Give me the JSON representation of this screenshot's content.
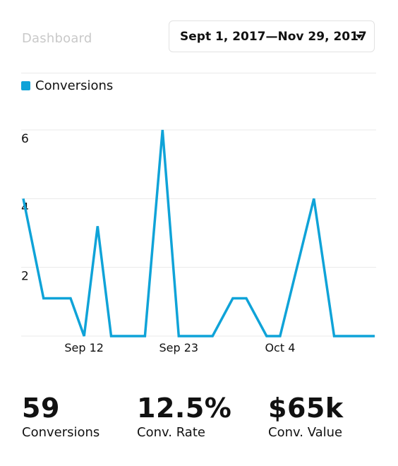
{
  "header": {
    "title": "Dashboard",
    "date_range": "Sept 1, 2017—Nov 29, 2017"
  },
  "colors": {
    "accent": "#0fa3d8",
    "grid": "#e9e9e9"
  },
  "icons": {
    "dropdown": "chevron-down-icon"
  },
  "chart_data": {
    "type": "line",
    "legend_position": "top-left",
    "grid": true,
    "series": [
      {
        "name": "Conversions",
        "x": [
          0,
          1.5,
          3.5,
          4.5,
          5.5,
          6.5,
          9,
          10.3,
          11.5,
          14,
          15.5,
          16.5,
          18,
          19,
          21.5,
          23,
          24.5,
          26
        ],
        "y": [
          4,
          1.1,
          1.1,
          0,
          3.2,
          0,
          0,
          6,
          0,
          0,
          1.1,
          1.1,
          0,
          0,
          4,
          0,
          0,
          0
        ]
      }
    ],
    "xlim": [
      0,
      26
    ],
    "ylim": [
      0,
      6
    ],
    "y_ticks": [
      2,
      4,
      6
    ],
    "x_ticks": [
      {
        "value": 4.5,
        "label": "Sep 12"
      },
      {
        "value": 11.5,
        "label": "Sep 23"
      },
      {
        "value": 19.0,
        "label": "Oct 4"
      }
    ],
    "gridlines_y": [
      0,
      2,
      4,
      6
    ]
  },
  "stats": [
    {
      "value": "59",
      "label": "Conversions"
    },
    {
      "value": "12.5%",
      "label": "Conv. Rate"
    },
    {
      "value": "$65k",
      "label": "Conv. Value"
    }
  ]
}
